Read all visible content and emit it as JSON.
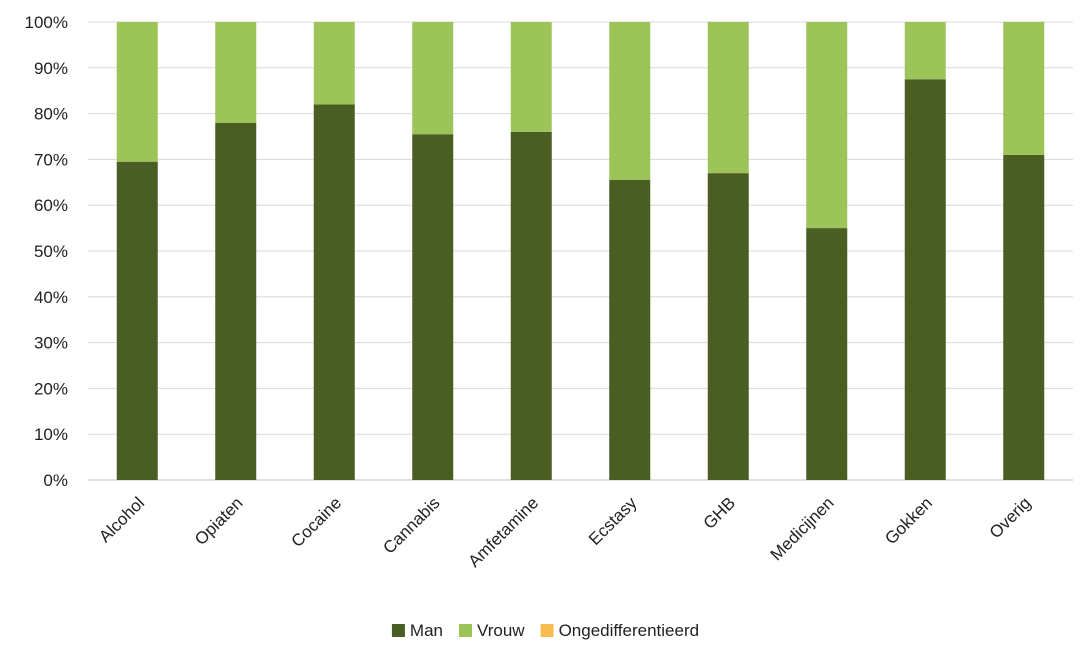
{
  "chart_data": {
    "type": "bar",
    "stacked": true,
    "categories": [
      "Alcohol",
      "Opiaten",
      "Cocaine",
      "Cannabis",
      "Amfetamine",
      "Ecstasy",
      "GHB",
      "Medicijnen",
      "Gokken",
      "Overig"
    ],
    "series": [
      {
        "name": "Man",
        "color": "#4a5e23",
        "values": [
          69.5,
          78,
          82,
          75.5,
          76,
          65.5,
          67,
          55,
          87.5,
          71
        ]
      },
      {
        "name": "Vrouw",
        "color": "#9dc458",
        "values": [
          30.5,
          22,
          18,
          24.5,
          24,
          34.5,
          33,
          45,
          12.5,
          29
        ]
      },
      {
        "name": "Ongedifferentieerd",
        "color": "#f5bd4f",
        "values": [
          0,
          0,
          0,
          0,
          0,
          0,
          0,
          0,
          0,
          0
        ]
      }
    ],
    "y_ticks": [
      "0%",
      "10%",
      "20%",
      "30%",
      "40%",
      "50%",
      "60%",
      "70%",
      "80%",
      "90%",
      "100%"
    ],
    "ylim": [
      0,
      100
    ],
    "grid": true,
    "legend_position": "bottom"
  }
}
